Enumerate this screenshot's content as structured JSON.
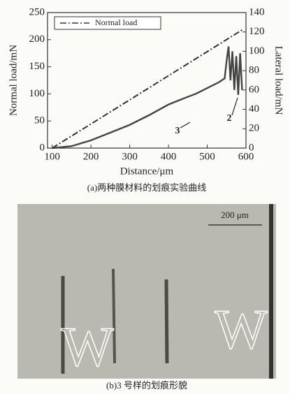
{
  "chart_data": {
    "type": "line",
    "x_label": "Distance/μm",
    "y_label": "Normal load/mN",
    "y2_label": "Lateral load/mN",
    "xlim": [
      88,
      600
    ],
    "xticks": [
      100,
      200,
      300,
      400,
      500,
      600
    ],
    "ylim": [
      0,
      250
    ],
    "yticks": [
      0,
      50,
      100,
      150,
      200,
      250
    ],
    "y2lim": [
      0,
      140
    ],
    "y2ticks": [
      0,
      20,
      40,
      60,
      80,
      100,
      120,
      140
    ],
    "legend": "upper left",
    "series": [
      {
        "name": "Normal load",
        "color": "#333333",
        "dash": "dash-dot",
        "x": [
          100,
          590
        ],
        "values": [
          0,
          218
        ]
      },
      {
        "color": "#444444",
        "axis": "y2",
        "x": [
          470,
          500,
          530,
          545,
          550,
          555,
          560,
          565,
          570,
          575,
          580,
          585,
          590
        ],
        "values": [
          56,
          62,
          68,
          72,
          90,
          105,
          70,
          100,
          60,
          95,
          55,
          98,
          60
        ]
      },
      {
        "color": "#444444",
        "axis": "y2",
        "x": [
          100,
          150,
          200,
          250,
          300,
          350,
          400,
          450,
          470
        ],
        "values": [
          0,
          2,
          8,
          16,
          24,
          34,
          45,
          53,
          56
        ]
      }
    ],
    "annotations": [
      "2",
      "3"
    ],
    "caption": "(a)两种膜材料的划痕实验曲线"
  },
  "micrograph": {
    "scale_label": "200 μm",
    "watermark": "W",
    "caption": "(b)3 号样的划痕形貌"
  }
}
